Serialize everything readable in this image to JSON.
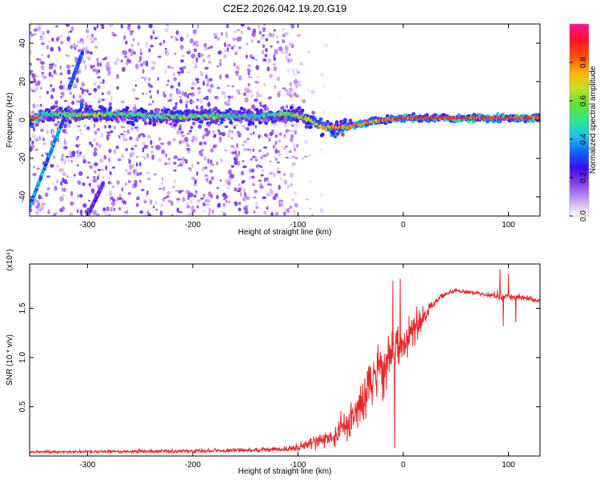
{
  "title": "C2E2.2026.042.19.20.G19",
  "chart_data": [
    {
      "type": "heatmap",
      "name": "spectrogram",
      "xlabel": "Height of straight line (km)",
      "ylabel": "Frequency (Hz)",
      "xlim": [
        -355,
        130
      ],
      "ylim": [
        -50,
        50
      ],
      "xticks": [
        -300,
        -200,
        -100,
        0,
        100
      ],
      "xtick_labels": [
        "-300",
        "-200",
        "-100",
        "0",
        "100"
      ],
      "yticks": [
        -40,
        -20,
        0,
        20,
        40
      ],
      "ytick_labels": [
        "-40",
        "-20",
        "0",
        "20",
        "40"
      ],
      "colorbar": {
        "label": "Normalized spectral amplitude",
        "range": [
          0,
          1
        ],
        "ticks": [
          0,
          0.2,
          0.4,
          0.6,
          0.8
        ],
        "tick_labels": [
          "0.0",
          "0.2",
          "0.4",
          "0.6",
          "0.8"
        ],
        "colormap": [
          "#ffffff",
          "#c9a3ef",
          "#8a3de6",
          "#3a0ef2",
          "#1060ff",
          "#18c8e8",
          "#2ee88a",
          "#64e030",
          "#c8e020",
          "#ffb000",
          "#ff5000",
          "#ff1030",
          "#ff1090"
        ]
      },
      "main_line": [
        {
          "x": -345,
          "y": 3,
          "a": 0.5
        },
        {
          "x": -300,
          "y": 3,
          "a": 0.65
        },
        {
          "x": -270,
          "y": 3,
          "a": 0.55
        },
        {
          "x": -230,
          "y": 2,
          "a": 0.5
        },
        {
          "x": -210,
          "y": 2,
          "a": 0.62
        },
        {
          "x": -175,
          "y": 2,
          "a": 0.6
        },
        {
          "x": -160,
          "y": 2,
          "a": 0.5
        },
        {
          "x": -135,
          "y": 2,
          "a": 0.45
        },
        {
          "x": -115,
          "y": 3,
          "a": 0.6
        },
        {
          "x": -95,
          "y": 2,
          "a": 0.65
        },
        {
          "x": -85,
          "y": -1,
          "a": 0.68
        },
        {
          "x": -75,
          "y": -4,
          "a": 0.72
        },
        {
          "x": -62,
          "y": -4,
          "a": 0.75
        },
        {
          "x": -48,
          "y": -3,
          "a": 0.8
        },
        {
          "x": -30,
          "y": -1,
          "a": 0.82
        },
        {
          "x": -15,
          "y": 0,
          "a": 0.85
        },
        {
          "x": 0,
          "y": 1,
          "a": 0.9
        },
        {
          "x": 20,
          "y": 1,
          "a": 0.95
        },
        {
          "x": 60,
          "y": 1,
          "a": 0.97
        },
        {
          "x": 100,
          "y": 1,
          "a": 0.96
        },
        {
          "x": 130,
          "y": 1,
          "a": 0.95
        }
      ],
      "streaks": [
        {
          "x0": -355,
          "y0": -45,
          "x1": -321,
          "y1": 3,
          "a": 0.35
        },
        {
          "x0": -317,
          "y0": 17,
          "x1": -305,
          "y1": 35,
          "a": 0.3
        },
        {
          "x0": -300,
          "y0": -50,
          "x1": -285,
          "y1": -33,
          "a": 0.2
        }
      ]
    },
    {
      "type": "line",
      "name": "snr",
      "xlabel": "Height of straight line (km)",
      "ylabel": "SNR (10 * v/v)",
      "y_multiplier": "(x10⁴)",
      "xlim": [
        -355,
        130
      ],
      "ylim": [
        0,
        1.95
      ],
      "xticks": [
        -300,
        -200,
        -100,
        0,
        100
      ],
      "xtick_labels": [
        "-300",
        "-200",
        "-100",
        "0",
        "100"
      ],
      "yticks": [
        0.5,
        1.0,
        1.5
      ],
      "ytick_labels": [
        "0.5",
        "1.0",
        "1.5"
      ],
      "color": "#e8282a",
      "envelope": [
        {
          "x": -355,
          "y": 0.04,
          "n": 0.02
        },
        {
          "x": -200,
          "y": 0.05,
          "n": 0.03
        },
        {
          "x": -150,
          "y": 0.06,
          "n": 0.03
        },
        {
          "x": -110,
          "y": 0.07,
          "n": 0.04
        },
        {
          "x": -95,
          "y": 0.11,
          "n": 0.07
        },
        {
          "x": -80,
          "y": 0.16,
          "n": 0.12
        },
        {
          "x": -65,
          "y": 0.22,
          "n": 0.18
        },
        {
          "x": -55,
          "y": 0.32,
          "n": 0.25
        },
        {
          "x": -45,
          "y": 0.45,
          "n": 0.3
        },
        {
          "x": -35,
          "y": 0.65,
          "n": 0.35
        },
        {
          "x": -25,
          "y": 0.82,
          "n": 0.4
        },
        {
          "x": -15,
          "y": 0.95,
          "n": 0.4
        },
        {
          "x": -5,
          "y": 1.07,
          "n": 0.35
        },
        {
          "x": 5,
          "y": 1.2,
          "n": 0.3
        },
        {
          "x": 15,
          "y": 1.35,
          "n": 0.2
        },
        {
          "x": 25,
          "y": 1.5,
          "n": 0.08
        },
        {
          "x": 35,
          "y": 1.62,
          "n": 0.04
        },
        {
          "x": 50,
          "y": 1.68,
          "n": 0.03
        },
        {
          "x": 80,
          "y": 1.64,
          "n": 0.03
        },
        {
          "x": 90,
          "y": 1.63,
          "n": 0.08
        },
        {
          "x": 100,
          "y": 1.62,
          "n": 0.06
        },
        {
          "x": 130,
          "y": 1.58,
          "n": 0.03
        }
      ],
      "peaks": [
        {
          "x": -10,
          "y": 1.78
        },
        {
          "x": -3,
          "y": 1.8
        },
        {
          "x": 13,
          "y": 1.52
        },
        {
          "x": 92,
          "y": 1.9
        },
        {
          "x": 100,
          "y": 1.85
        },
        {
          "x": -8,
          "y": 0.08
        },
        {
          "x": 95,
          "y": 1.32
        },
        {
          "x": 107,
          "y": 1.36
        }
      ]
    }
  ]
}
